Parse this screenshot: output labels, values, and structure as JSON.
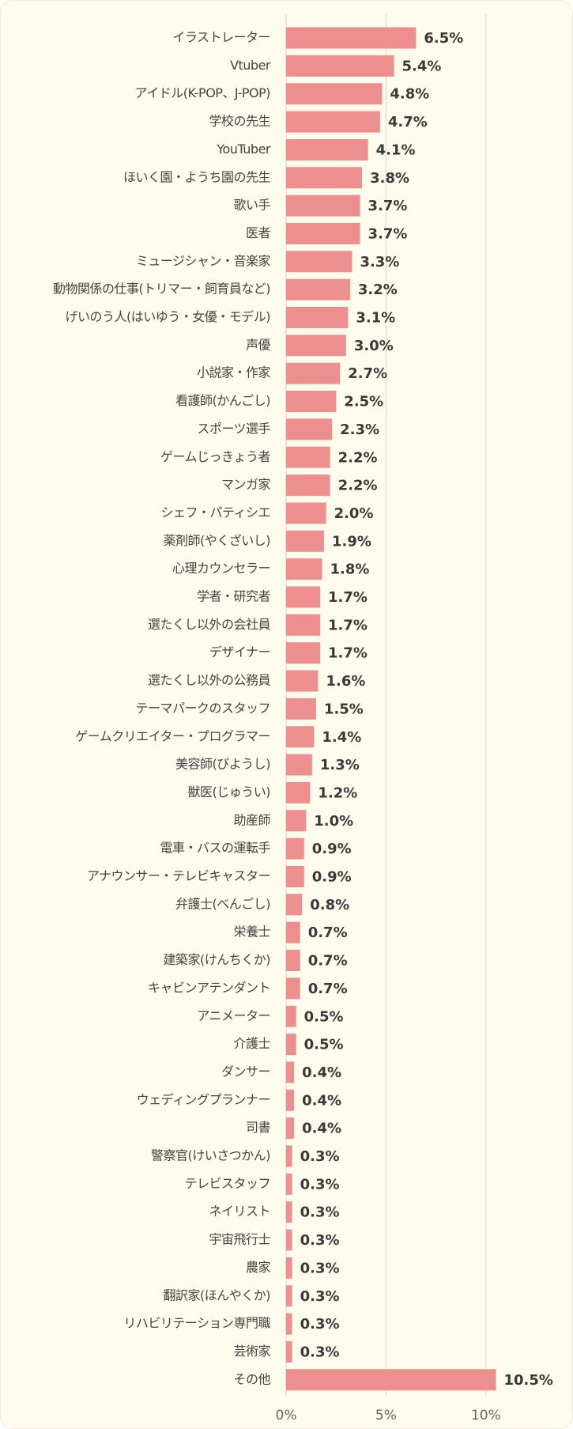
{
  "chart_data": {
    "type": "barh",
    "categories": [
      "イラストレーター",
      "Vtuber",
      "アイドル(K-POP、J-POP)",
      "学校の先生",
      "YouTuber",
      "ほいく園・ようち園の先生",
      "歌い手",
      "医者",
      "ミュージシャン・音楽家",
      "動物関係の仕事(トリマー・飼育員など)",
      "げいのう人(はいゆう・女優・モデル)",
      "声優",
      "小説家・作家",
      "看護師(かんごし)",
      "スポーツ選手",
      "ゲームじっきょう者",
      "マンガ家",
      "シェフ・パティシエ",
      "薬剤師(やくざいし)",
      "心理カウンセラー",
      "学者・研究者",
      "選たくし以外の会社員",
      "デザイナー",
      "選たくし以外の公務員",
      "テーマパークのスタッフ",
      "ゲームクリエイター・プログラマー",
      "美容師(びようし)",
      "獣医(じゅうい)",
      "助産師",
      "電車・バスの運転手",
      "アナウンサー・テレビキャスター",
      "弁護士(べんごし)",
      "栄養士",
      "建築家(けんちくか)",
      "キャビンアテンダント",
      "アニメーター",
      "介護士",
      "ダンサー",
      "ウェディングプランナー",
      "司書",
      "警察官(けいさつかん)",
      "テレビスタッフ",
      "ネイリスト",
      "宇宙飛行士",
      "農家",
      "翻訳家(ほんやくか)",
      "リハビリテーション専門職",
      "芸術家",
      "その他"
    ],
    "values": [
      6.5,
      5.4,
      4.8,
      4.7,
      4.1,
      3.8,
      3.7,
      3.7,
      3.3,
      3.2,
      3.1,
      3.0,
      2.7,
      2.5,
      2.3,
      2.2,
      2.2,
      2.0,
      1.9,
      1.8,
      1.7,
      1.7,
      1.7,
      1.6,
      1.5,
      1.4,
      1.3,
      1.2,
      1.0,
      0.9,
      0.9,
      0.8,
      0.7,
      0.7,
      0.7,
      0.5,
      0.5,
      0.4,
      0.4,
      0.4,
      0.3,
      0.3,
      0.3,
      0.3,
      0.3,
      0.3,
      0.3,
      0.3,
      10.5
    ],
    "value_labels": [
      "6.5%",
      "5.4%",
      "4.8%",
      "4.7%",
      "4.1%",
      "3.8%",
      "3.7%",
      "3.7%",
      "3.3%",
      "3.2%",
      "3.1%",
      "3.0%",
      "2.7%",
      "2.5%",
      "2.3%",
      "2.2%",
      "2.2%",
      "2.0%",
      "1.9%",
      "1.8%",
      "1.7%",
      "1.7%",
      "1.7%",
      "1.6%",
      "1.5%",
      "1.4%",
      "1.3%",
      "1.2%",
      "1.0%",
      "0.9%",
      "0.9%",
      "0.8%",
      "0.7%",
      "0.7%",
      "0.7%",
      "0.5%",
      "0.5%",
      "0.4%",
      "0.4%",
      "0.4%",
      "0.3%",
      "0.3%",
      "0.3%",
      "0.3%",
      "0.3%",
      "0.3%",
      "0.3%",
      "0.3%",
      "10.5%"
    ],
    "color": "#ed8f8f",
    "xlim": [
      0,
      14
    ],
    "xticks": [
      {
        "value": 0,
        "label": "0%"
      },
      {
        "value": 5,
        "label": "5%"
      },
      {
        "value": 10,
        "label": "10%"
      }
    ],
    "grid": true
  }
}
